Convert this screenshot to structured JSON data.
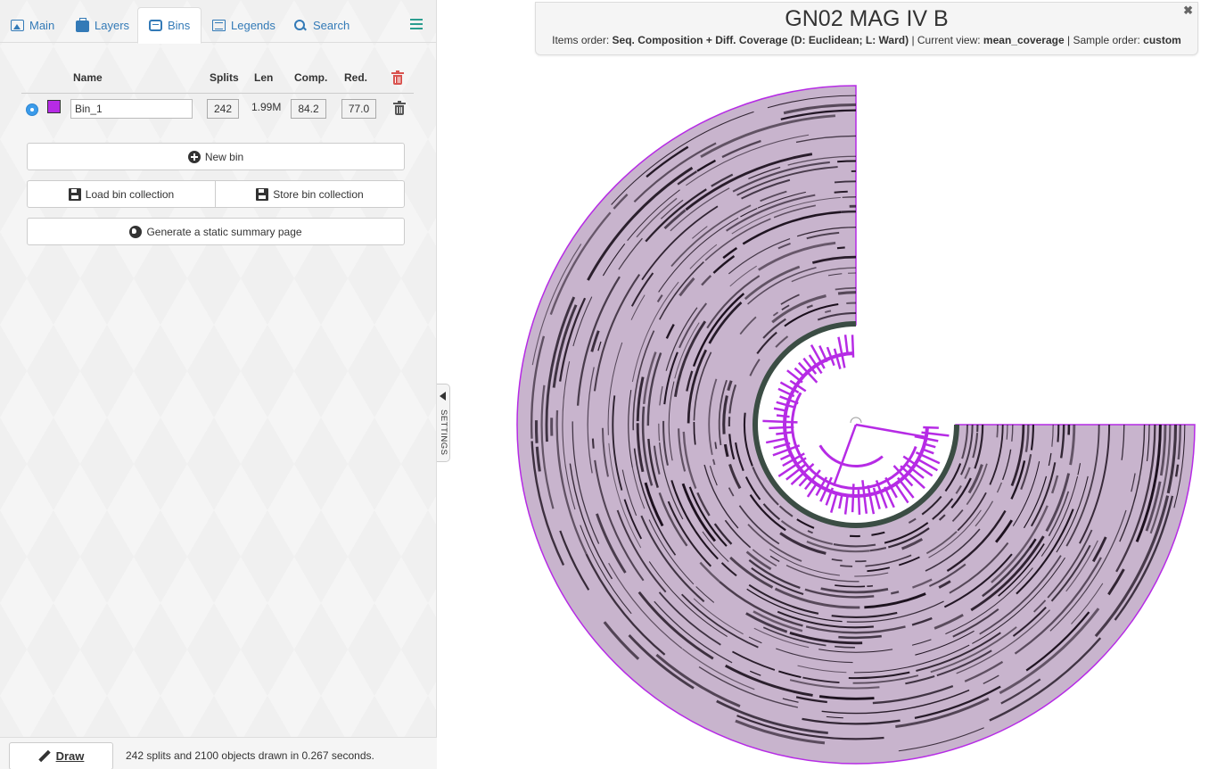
{
  "tabs": [
    {
      "label": "Main",
      "icon": "image-icon"
    },
    {
      "label": "Layers",
      "icon": "briefcase-icon"
    },
    {
      "label": "Bins",
      "icon": "inbox-icon"
    },
    {
      "label": "Legends",
      "icon": "list-icon"
    },
    {
      "label": "Search",
      "icon": "search-icon"
    }
  ],
  "active_tab": "Bins",
  "bins_table": {
    "headers": {
      "name": "Name",
      "splits": "Splits",
      "len": "Len",
      "comp": "Comp.",
      "red": "Red."
    },
    "rows": [
      {
        "name": "Bin_1",
        "color": "#b62be5",
        "splits": "242",
        "len": "1.99M",
        "comp": "84.2",
        "red": "77.0",
        "selected": true
      }
    ]
  },
  "buttons": {
    "new_bin": "New bin",
    "load_collection": "Load bin collection",
    "store_collection": "Store bin collection",
    "summary": "Generate a static summary page",
    "draw": "Draw"
  },
  "status": "242 splits and 2100 objects drawn in 0.267 seconds.",
  "settings_label": "SETTINGS",
  "header": {
    "title": "GN02 MAG IV B",
    "items_order_label": "Items order:",
    "items_order_value": "Seq. Composition + Diff. Coverage (D: Euclidean; L: Ward)",
    "current_view_label": "Current view:",
    "current_view_value": "mean_coverage",
    "sample_order_label": "Sample order:",
    "sample_order_value": "custom",
    "close_glyph": "✖"
  },
  "colors": {
    "accent": "#337ab7",
    "bin": "#b62be5",
    "ring_background": "#c8b4cd",
    "ring_data": "#1a0f1c",
    "danger": "#d9534f"
  }
}
